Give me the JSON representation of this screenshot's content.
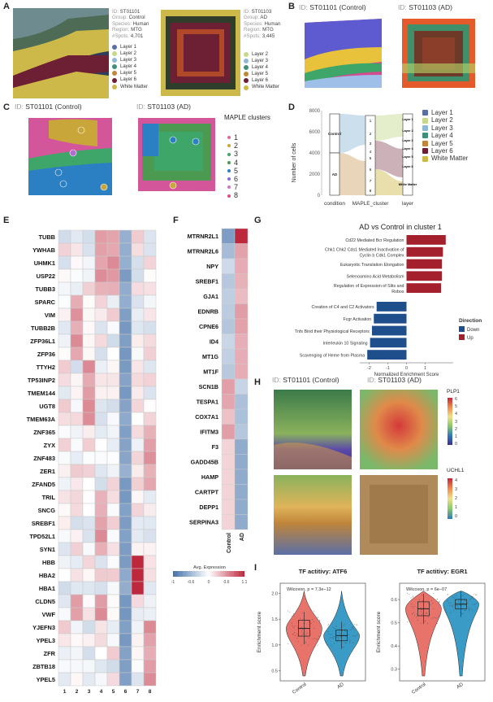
{
  "panels": {
    "A": "A",
    "B": "B",
    "C": "C",
    "D": "D",
    "E": "E",
    "F": "F",
    "G": "G",
    "H": "H",
    "I": "I"
  },
  "panelA": {
    "sample1": {
      "id_label": "ID:",
      "id": "ST01101",
      "group_label": "Group:",
      "group": "Control",
      "species_label": "Species:",
      "species": "Human",
      "region_label": "Region:",
      "region": "MTG",
      "spots_label": "#Spots:",
      "spots": "4,701"
    },
    "sample2": {
      "id_label": "ID:",
      "id": "ST01103",
      "group_label": "Group:",
      "group": "AD",
      "species_label": "Species:",
      "species": "Human",
      "region_label": "Region:",
      "region": "MTG",
      "spots_label": "#Spots:",
      "spots": "3,445"
    },
    "legend1": [
      "Layer 1",
      "Layer 2",
      "Layer 3",
      "Layer 4",
      "Layer 5",
      "Layer 6",
      "White Matter"
    ],
    "legend2": [
      "Layer 2",
      "Layer 3",
      "Layer 4",
      "Layer 5",
      "Layer 6",
      "White Matter"
    ]
  },
  "panelB": {
    "title1_id": "ID:",
    "title1": "ST01101 (Control)",
    "title2_id": "ID:",
    "title2": "ST01103 (AD)"
  },
  "panelC": {
    "title1_id": "ID:",
    "title1": "ST01101 (Control)",
    "title2_id": "ID:",
    "title2": "ST01103 (AD)",
    "legend_title": "MAPLE clusters",
    "clusters": [
      "1",
      "2",
      "3",
      "4",
      "5",
      "6",
      "7",
      "8"
    ]
  },
  "panelD": {
    "ylabel": "Number of cells",
    "yticks": [
      "0",
      "2000",
      "4000",
      "6000",
      "8000"
    ],
    "xlabels": [
      "condition",
      "MAPLE_cluster",
      "layer"
    ],
    "condition": [
      "Control",
      "AD"
    ],
    "clusters": [
      "1",
      "2",
      "3",
      "4",
      "5",
      "6",
      "7",
      "8"
    ],
    "layers": [
      "Layer 1",
      "Layer 2",
      "Layer 3",
      "Layer 4",
      "Layer 5",
      "Layer 6",
      "White Matter"
    ],
    "legend": [
      "Layer 1",
      "Layer 2",
      "Layer 3",
      "Layer 4",
      "Layer 5",
      "Layer 6",
      "White Matter"
    ]
  },
  "panelE": {
    "genes": [
      "TUBB",
      "YWHAB",
      "UHMK1",
      "USP22",
      "TUBB3",
      "SPARC",
      "VIM",
      "TUBB2B",
      "ZFP36L1",
      "ZFP36",
      "TTYH2",
      "TP53INP2",
      "TMEM144",
      "UGT8",
      "TMEM63A",
      "ZNF365",
      "ZYX",
      "ZNF483",
      "ZER1",
      "ZFAND5",
      "TRIL",
      "SNCG",
      "SREBF1",
      "TPD52L1",
      "SYN1",
      "HBB",
      "HBA2",
      "HBA1",
      "CLDN5",
      "VWF",
      "YJEFN3",
      "YPEL3",
      "ZFR",
      "ZBTB18",
      "YPEL5"
    ],
    "columns": [
      "1",
      "2",
      "3",
      "4",
      "5",
      "6",
      "7",
      "8"
    ]
  },
  "panelF": {
    "genes": [
      "MTRNR2L1",
      "MTRNR2L6",
      "NPY",
      "SREBF1",
      "GJA1",
      "EDNRB",
      "CPNE6",
      "ID4",
      "MT1G",
      "MT1F",
      "SCN1B",
      "TESPA1",
      "COX7A1",
      "IFITM3",
      "F3",
      "GADD45B",
      "HAMP",
      "CARTPT",
      "DEPP1",
      "SERPINA3"
    ],
    "columns": [
      "Control",
      "AD"
    ],
    "colorbar_title": "Avg. Expression",
    "colorbar_ticks": [
      "-1",
      "-0.6",
      "0",
      "0.6",
      "1.1"
    ]
  },
  "chart_data": {
    "type": "bar",
    "title": "AD vs Control in cluster 1",
    "xlabel": "Normalized Enrichment Score",
    "xlim": [
      -2.5,
      2.5
    ],
    "xticks": [
      "-2",
      "-1",
      "0",
      "1"
    ],
    "legend_title": "Direction",
    "legend": [
      "Down",
      "Up"
    ],
    "colors": {
      "Down": "#1f4e8c",
      "Up": "#a3202c"
    },
    "categories": [
      "Cd22 Mediated Bcr Regulation",
      "Chk1 Chk2 Cds1 Mediated Inactivation of Cyclin b Cdk1 Complex",
      "Eukaryotic Translation Elongation",
      "Selenoamino Acid Metabolism",
      "Regulation of Expression of Slits and Robos",
      "Creation of C4 and C2 Activators",
      "Fcgr Activation",
      "Tnfs Bind their Physiological Receptors",
      "Interleukin 10 Signaling",
      "Scavenging of Heme from Plasma"
    ],
    "values": [
      2.1,
      1.95,
      1.9,
      1.9,
      1.85,
      -1.6,
      -1.75,
      -1.85,
      -1.95,
      -2.1
    ],
    "direction": [
      "Up",
      "Up",
      "Up",
      "Up",
      "Up",
      "Down",
      "Down",
      "Down",
      "Down",
      "Down"
    ]
  },
  "panelH": {
    "title1_id": "ID:",
    "title1": "ST01101 (Control)",
    "title2_id": "ID:",
    "title2": "ST01103 (AD)",
    "gene1": "PLP1",
    "gene1_ticks": [
      "6",
      "5",
      "4",
      "3",
      "2",
      "1",
      "0"
    ],
    "gene2": "UCHL1",
    "gene2_ticks": [
      "4",
      "3",
      "2",
      "1",
      "0"
    ]
  },
  "panelI": {
    "left": {
      "title": "TF actitivy: ATF6",
      "stat": "Wilcoxon, p = 7.3e−12",
      "ylabel": "Enrichment score",
      "yticks": [
        "0.5",
        "1.0",
        "1.5",
        "2.0"
      ],
      "groups": [
        "Control",
        "AD"
      ],
      "medians": [
        1.32,
        1.18
      ],
      "q1": [
        1.17,
        1.08
      ],
      "q3": [
        1.48,
        1.29
      ]
    },
    "right": {
      "title": "TF actitivy: EGR1",
      "stat": "Wilcoxon, p = 6e−07",
      "ylabel": "Enrichment score",
      "yticks": [
        "0.3",
        "0.4",
        "0.5",
        "0.6"
      ],
      "groups": [
        "Control",
        "AD"
      ],
      "medians": [
        0.56,
        0.58
      ],
      "q1": [
        0.53,
        0.56
      ],
      "q3": [
        0.59,
        0.6
      ]
    }
  },
  "colors": {
    "control": "#e8736b",
    "ad": "#3a9bc6",
    "layer1": "#5b6fa6",
    "layer2": "#c6d98a",
    "layer3": "#8fb7d8",
    "layer4": "#3f8f7a",
    "layer5": "#c0863a",
    "layer6": "#6d1f33",
    "wm": "#cdb94a"
  }
}
